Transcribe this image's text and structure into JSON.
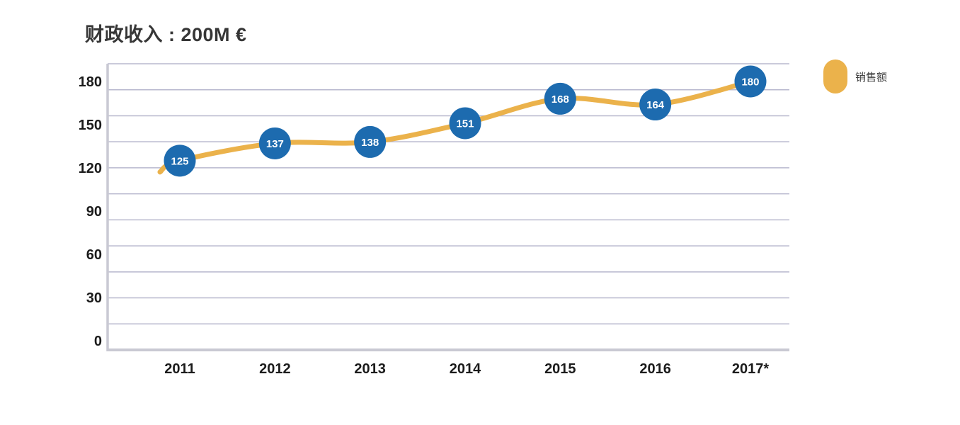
{
  "title": "财政收入 : 200M €",
  "legend": {
    "label": "销售额",
    "marker_color": "#EBB24B"
  },
  "chart_data": {
    "type": "line",
    "title": "财政收入 : 200M €",
    "categories": [
      "2011",
      "2012",
      "2013",
      "2014",
      "2015",
      "2016",
      "2017*"
    ],
    "series": [
      {
        "name": "销售额",
        "values": [
          125,
          137,
          138,
          151,
          168,
          164,
          180
        ]
      }
    ],
    "xlabel": "",
    "ylabel": "",
    "yticks": [
      180,
      150,
      120,
      90,
      60,
      30,
      0
    ],
    "ylim": [
      0,
      192
    ],
    "grid": "horizontal-only",
    "gridline_count": 12,
    "legend_position": "right",
    "point_labels_shown": true,
    "colors": {
      "line": "#EBB24B",
      "point_fill": "#1D6BAF",
      "point_label": "#ffffff",
      "gridline": "#b8b8ce",
      "axis_border": "#c9c9d3",
      "tick_label": "#1b1b1b",
      "title_text": "#363636",
      "background": "#ffffff"
    }
  }
}
